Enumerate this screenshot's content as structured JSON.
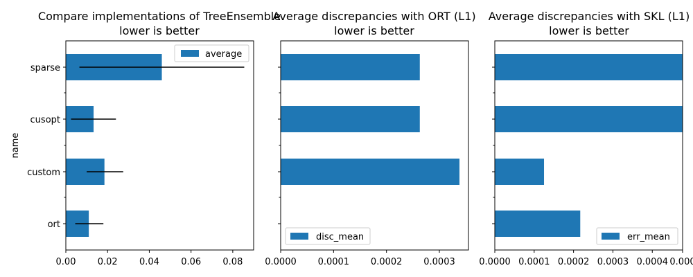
{
  "chart_data": [
    {
      "type": "bar",
      "orientation": "horizontal",
      "title": "Compare implementations of TreeEnsemble",
      "subtitle": "lower is better",
      "ylabel": "name",
      "xlabel": "",
      "categories": [
        "ort",
        "custom",
        "cusopt",
        "sparse"
      ],
      "series": [
        {
          "name": "average",
          "values": [
            0.011,
            0.0185,
            0.0133,
            0.046
          ],
          "error_low": [
            0.0045,
            0.01,
            0.0025,
            0.0065
          ],
          "error_high": [
            0.018,
            0.0275,
            0.024,
            0.0855
          ]
        }
      ],
      "xlim": [
        0,
        0.09
      ],
      "xticks": [
        "0.00",
        "0.02",
        "0.04",
        "0.06",
        "0.08"
      ],
      "xtick_values": [
        0,
        0.02,
        0.04,
        0.06,
        0.08
      ],
      "legend": "upper right",
      "color": "#1f77b4",
      "errorbar_color": "#000000",
      "grid": false
    },
    {
      "type": "bar",
      "orientation": "horizontal",
      "title": "Average discrepancies with ORT (L1)",
      "subtitle": "lower is better",
      "ylabel": "",
      "xlabel": "",
      "categories": [
        "ort",
        "custom",
        "cusopt",
        "sparse"
      ],
      "series": [
        {
          "name": "disc_mean",
          "values": [
            0,
            0.000338,
            0.000263,
            0.000263
          ]
        }
      ],
      "xlim": [
        0,
        0.000355
      ],
      "xticks": [
        "0.0000",
        "0.0001",
        "0.0002",
        "0.0003"
      ],
      "xtick_values": [
        0,
        0.0001,
        0.0002,
        0.0003
      ],
      "legend": "lower left",
      "color": "#1f77b4",
      "grid": false
    },
    {
      "type": "bar",
      "orientation": "horizontal",
      "title": "Average discrepancies with SKL (L1)",
      "subtitle": "lower is better",
      "ylabel": "",
      "xlabel": "",
      "categories": [
        "ort",
        "custom",
        "cusopt",
        "sparse"
      ],
      "series": [
        {
          "name": "err_mean",
          "values": [
            0.000217,
            0.000125,
            0.000477,
            0.000477
          ]
        }
      ],
      "xlim": [
        0,
        0.000477
      ],
      "xticks": [
        "0.0000",
        "0.0001",
        "0.0002",
        "0.0003",
        "0.0004",
        "0.000"
      ],
      "xtick_values": [
        0,
        0.0001,
        0.0002,
        0.0003,
        0.0004,
        0.000477
      ],
      "legend": "lower right",
      "color": "#1f77b4",
      "grid": false
    }
  ]
}
